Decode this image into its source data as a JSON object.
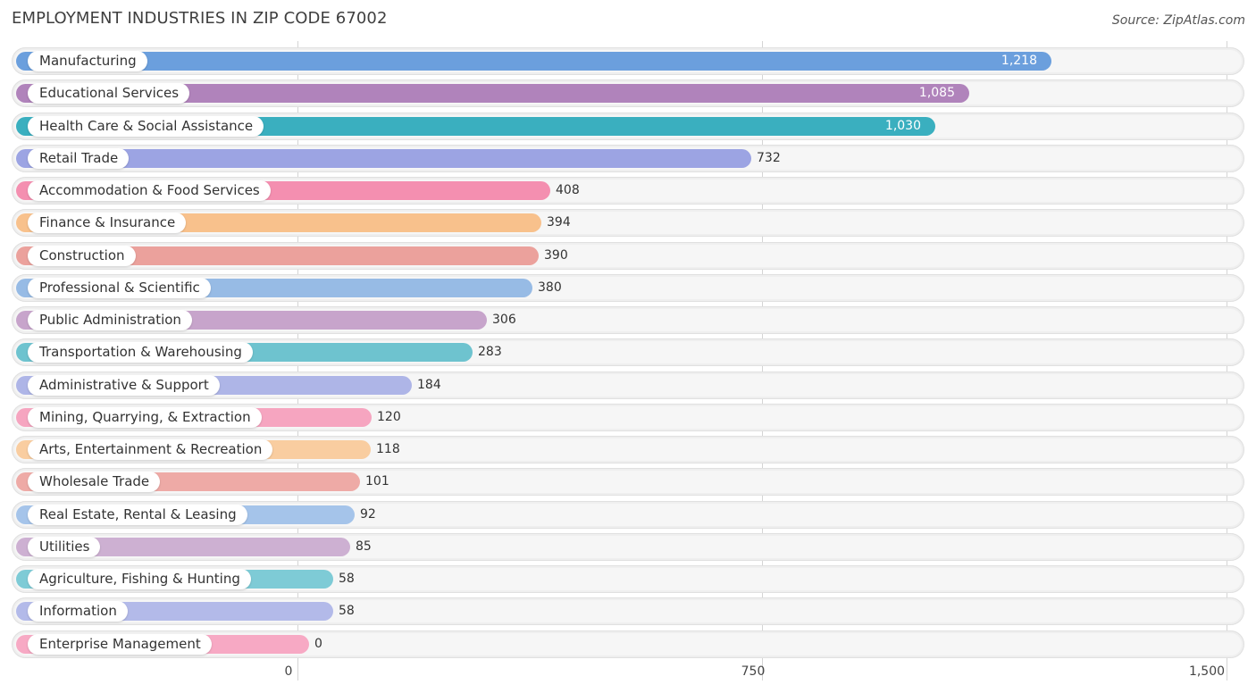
{
  "header": {
    "title": "EMPLOYMENT INDUSTRIES IN ZIP CODE 67002",
    "source": "Source: ZipAtlas.com"
  },
  "chart_data": {
    "type": "bar",
    "orientation": "horizontal",
    "title": "EMPLOYMENT INDUSTRIES IN ZIP CODE 67002",
    "xlabel": "",
    "ylabel": "",
    "xlim": [
      0,
      1500
    ],
    "ticks": [
      {
        "value": 0,
        "label": "0"
      },
      {
        "value": 750,
        "label": "750"
      },
      {
        "value": 1500,
        "label": "1,500"
      }
    ],
    "categories": [
      {
        "label": "Manufacturing",
        "value": 1218,
        "value_label": "1,218",
        "color": "#6b9fdd"
      },
      {
        "label": "Educational Services",
        "value": 1085,
        "value_label": "1,085",
        "color": "#b083bb"
      },
      {
        "label": "Health Care & Social Assistance",
        "value": 1030,
        "value_label": "1,030",
        "color": "#3aafbf"
      },
      {
        "label": "Retail Trade",
        "value": 732,
        "value_label": "732",
        "color": "#9ca4e3"
      },
      {
        "label": "Accommodation & Food Services",
        "value": 408,
        "value_label": "408",
        "color": "#f48fb0"
      },
      {
        "label": "Finance & Insurance",
        "value": 394,
        "value_label": "394",
        "color": "#f8c18c"
      },
      {
        "label": "Construction",
        "value": 390,
        "value_label": "390",
        "color": "#eba19c"
      },
      {
        "label": "Professional & Scientific",
        "value": 380,
        "value_label": "380",
        "color": "#97bbe5"
      },
      {
        "label": "Public Administration",
        "value": 306,
        "value_label": "306",
        "color": "#c7a4cb"
      },
      {
        "label": "Transportation & Warehousing",
        "value": 283,
        "value_label": "283",
        "color": "#6ec3cf"
      },
      {
        "label": "Administrative & Support",
        "value": 184,
        "value_label": "184",
        "color": "#aeb5e7"
      },
      {
        "label": "Mining, Quarrying, & Extraction",
        "value": 120,
        "value_label": "120",
        "color": "#f6a5c0"
      },
      {
        "label": "Arts, Entertainment & Recreation",
        "value": 118,
        "value_label": "118",
        "color": "#f9cda0"
      },
      {
        "label": "Wholesale Trade",
        "value": 101,
        "value_label": "101",
        "color": "#eeaaa6"
      },
      {
        "label": "Real Estate, Rental & Leasing",
        "value": 92,
        "value_label": "92",
        "color": "#a5c4ea"
      },
      {
        "label": "Utilities",
        "value": 85,
        "value_label": "85",
        "color": "#cdb0d2"
      },
      {
        "label": "Agriculture, Fishing & Hunting",
        "value": 58,
        "value_label": "58",
        "color": "#7ecbd6"
      },
      {
        "label": "Information",
        "value": 58,
        "value_label": "58",
        "color": "#b3bae9"
      },
      {
        "label": "Enterprise Management",
        "value": 0,
        "value_label": "0",
        "color": "#f7a9c4"
      }
    ]
  }
}
